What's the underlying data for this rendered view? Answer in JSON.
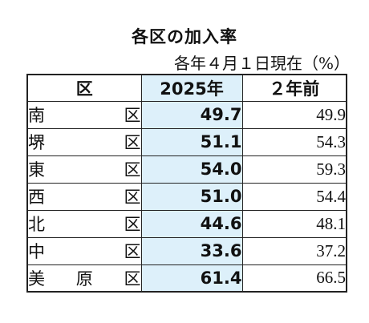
{
  "title": "各区の加入率",
  "note": "各年４月１日現在（%）",
  "table": {
    "headers": [
      "区",
      "2025年",
      "２年前"
    ],
    "rows": [
      {
        "ward": [
          "南",
          "区"
        ],
        "current": "49.7",
        "previous": "49.9"
      },
      {
        "ward": [
          "堺",
          "区"
        ],
        "current": "51.1",
        "previous": "54.3"
      },
      {
        "ward": [
          "東",
          "区"
        ],
        "current": "54.0",
        "previous": "59.3"
      },
      {
        "ward": [
          "西",
          "区"
        ],
        "current": "51.0",
        "previous": "54.4"
      },
      {
        "ward": [
          "北",
          "区"
        ],
        "current": "44.6",
        "previous": "48.1"
      },
      {
        "ward": [
          "中",
          "区"
        ],
        "current": "33.6",
        "previous": "37.2"
      },
      {
        "ward": [
          "美",
          "原",
          "区"
        ],
        "current": "61.4",
        "previous": "66.5"
      }
    ]
  },
  "colors": {
    "highlight": "#ddf0fa",
    "border": "#222222",
    "text": "#111111"
  }
}
